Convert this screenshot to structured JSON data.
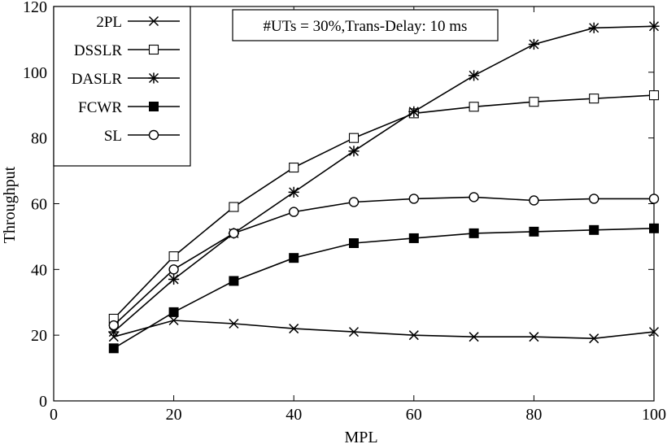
{
  "chart_data": {
    "type": "line",
    "title": "",
    "annotation": "#UTs = 30%,Trans-Delay: 10 ms",
    "xlabel": "MPL",
    "ylabel": "Throughput",
    "xlim": [
      0,
      100
    ],
    "ylim": [
      0,
      120
    ],
    "x_ticks": [
      0,
      20,
      40,
      60,
      80,
      100
    ],
    "y_ticks": [
      0,
      20,
      40,
      60,
      80,
      100,
      120
    ],
    "grid": false,
    "legend_position": "top-left",
    "x": [
      10,
      20,
      30,
      40,
      50,
      60,
      70,
      80,
      90,
      100
    ],
    "series": [
      {
        "name": "2PL",
        "marker": "x",
        "values": [
          19.5,
          24.5,
          23.5,
          22,
          21,
          20,
          19.5,
          19.5,
          19,
          21
        ]
      },
      {
        "name": "DSSLR",
        "marker": "square-open",
        "values": [
          25,
          44,
          59,
          71,
          80,
          87.5,
          89.5,
          91,
          92,
          93
        ]
      },
      {
        "name": "DASLR",
        "marker": "asterisk",
        "values": [
          21,
          37,
          51,
          63.5,
          76,
          88,
          99,
          108.5,
          113.5,
          114
        ]
      },
      {
        "name": "FCWR",
        "marker": "square-filled",
        "values": [
          16,
          27,
          36.5,
          43.5,
          48,
          49.5,
          51,
          51.5,
          52,
          52.5
        ]
      },
      {
        "name": "SL",
        "marker": "circle-open",
        "values": [
          23,
          40,
          51,
          57.5,
          60.5,
          61.5,
          62,
          61,
          61.5,
          61.5
        ]
      }
    ]
  }
}
